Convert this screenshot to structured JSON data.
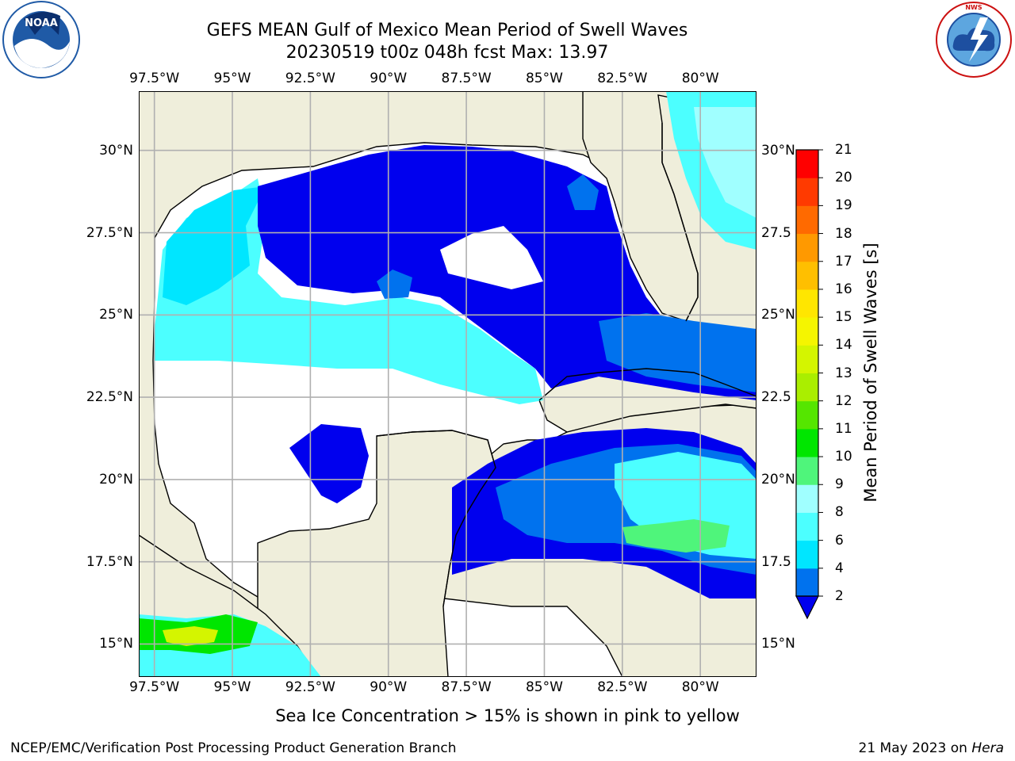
{
  "header": {
    "title_line1": "GEFS MEAN Gulf of Mexico Mean Period of Swell Waves",
    "title_line2": "20230519 t00z 048h fcst   Max: 13.97"
  },
  "logos": {
    "left": "NOAA",
    "left_ring": "NATIONAL OCEANIC AND ATMOSPHERIC ADMINISTRATION · U.S. DEPARTMENT OF COMMERCE",
    "right_ring": "NATIONAL WEATHER SERVICE"
  },
  "map": {
    "lon_labels": [
      "97.5°W",
      "95°W",
      "92.5°W",
      "90°W",
      "87.5°W",
      "85°W",
      "82.5°W",
      "80°W"
    ],
    "lon_values": [
      -97.5,
      -95,
      -92.5,
      -90,
      -87.5,
      -85,
      -82.5,
      -80
    ],
    "lat_labels_left": [
      "30°N",
      "27.5°N",
      "25°N",
      "22.5°N",
      "20°N",
      "17.5°N",
      "15°N"
    ],
    "lat_labels_right": [
      "30°N",
      "27.5",
      "25°N",
      "22.5",
      "20°N",
      "17.5",
      "15°N"
    ],
    "lat_values": [
      30,
      27.5,
      25,
      22.5,
      20,
      17.5,
      15
    ],
    "lon_range": [
      -98,
      -78.2
    ],
    "lat_range": [
      14,
      31.8
    ],
    "colors": {
      "land": "#efeedb",
      "ocean_missing": "#ffffff",
      "grid": "#b0b0b0"
    }
  },
  "colorbar": {
    "label": "Mean Period of Swell Waves [s]",
    "ticks": [
      "2",
      "4",
      "6",
      "8",
      "9",
      "10",
      "11",
      "12",
      "13",
      "14",
      "15",
      "16",
      "17",
      "18",
      "19",
      "20",
      "21"
    ],
    "colors": [
      "#0000ee",
      "#0072ee",
      "#00e6ff",
      "#4cffff",
      "#a0ffff",
      "#4ff57b",
      "#00e600",
      "#55e600",
      "#aaee00",
      "#d4f500",
      "#f5f500",
      "#ffe600",
      "#ffbf00",
      "#ff9900",
      "#ff6a00",
      "#ff3a00",
      "#ff0000"
    ],
    "extend_color": "#0000ee"
  },
  "footer": {
    "note": "Sea Ice Concentration > 15% is shown in pink to yellow",
    "credit": "NCEP/EMC/Verification Post Processing Product Generation Branch",
    "date": "21 May 2023 on",
    "machine": "Hera"
  }
}
